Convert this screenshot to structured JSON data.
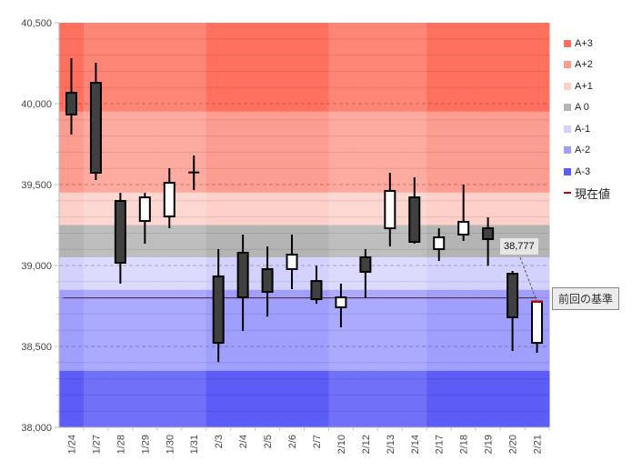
{
  "chart_data": {
    "type": "candlestick",
    "ylim": [
      38000,
      40500
    ],
    "yticks": [
      "38,000",
      "38,500",
      "39,000",
      "39,500",
      "40,000",
      "40,500"
    ],
    "ytick_values": [
      38000,
      38500,
      39000,
      39500,
      40000,
      40500
    ],
    "categories": [
      "1/24",
      "1/27",
      "1/28",
      "1/29",
      "1/30",
      "1/31",
      "2/3",
      "2/4",
      "2/5",
      "2/6",
      "2/7",
      "2/10",
      "2/12",
      "2/13",
      "2/14",
      "2/17",
      "2/18",
      "2/19",
      "2/20",
      "2/21"
    ],
    "ohlc": [
      [
        40067,
        40281,
        39809,
        39933
      ],
      [
        40129,
        40253,
        39528,
        39573
      ],
      [
        39399,
        39449,
        38888,
        39017
      ],
      [
        39275,
        39449,
        39135,
        39421
      ],
      [
        39303,
        39601,
        39230,
        39511
      ],
      [
        39573,
        39680,
        39466,
        39575
      ],
      [
        38933,
        39101,
        38404,
        38522
      ],
      [
        39079,
        39191,
        38596,
        38803
      ],
      [
        38978,
        39118,
        38685,
        38837
      ],
      [
        38978,
        39191,
        38854,
        39067
      ],
      [
        38904,
        38999,
        38764,
        38792
      ],
      [
        38742,
        38888,
        38618,
        38803
      ],
      [
        39051,
        39101,
        38798,
        38961
      ],
      [
        39230,
        39573,
        39118,
        39461
      ],
      [
        39421,
        39545,
        39135,
        39146
      ],
      [
        39101,
        39230,
        39028,
        39174
      ],
      [
        39191,
        39500,
        39152,
        39270
      ],
      [
        39230,
        39298,
        38999,
        39163
      ],
      [
        38949,
        38966,
        38472,
        38680
      ],
      [
        38522,
        38777,
        38461,
        38777
      ]
    ],
    "week_shading": [
      true,
      false,
      false,
      false,
      false,
      false,
      true,
      true,
      true,
      true,
      true,
      false,
      false,
      false,
      false,
      true,
      true,
      true,
      true,
      true
    ],
    "bands": [
      {
        "name": "A+3",
        "from": 39950,
        "to": 40500,
        "color": "#ff705f",
        "light": "#fe8676"
      },
      {
        "name": "A+2",
        "from": 39450,
        "to": 39950,
        "color": "#fd9c90",
        "light": "#fdaba0"
      },
      {
        "name": "A+1",
        "from": 39250,
        "to": 39450,
        "color": "#fdd0c9",
        "light": "#fdd8d2"
      },
      {
        "name": "A 0",
        "from": 39050,
        "to": 39250,
        "color": "#b4b4b4",
        "light": "#bebebe"
      },
      {
        "name": "A-1",
        "from": 38850,
        "to": 39050,
        "color": "#d3d2fe",
        "light": "#dcdbfe"
      },
      {
        "name": "A-2",
        "from": 38350,
        "to": 38850,
        "color": "#a09ffd",
        "light": "#abaafe"
      },
      {
        "name": "A-3",
        "from": 38000,
        "to": 38350,
        "color": "#5c5cf7",
        "light": "#7070f8"
      }
    ],
    "legend": [
      {
        "label": "A+3",
        "color": "#ff705f"
      },
      {
        "label": "A+2",
        "color": "#fd9c90"
      },
      {
        "label": "A+1",
        "color": "#fdd0c9"
      },
      {
        "label": "A 0",
        "color": "#b4b4b4"
      },
      {
        "label": "A-1",
        "color": "#d3d2fe"
      },
      {
        "label": "A-2",
        "color": "#a09ffd"
      },
      {
        "label": "A-3",
        "color": "#5c5cf7"
      }
    ],
    "current_legend": "現在値",
    "current_value": 38777,
    "current_value_label": "38,777",
    "reference_value": 38800,
    "reference_label": "前回の基準",
    "up_color": "#ffffff",
    "down_color": "#404040"
  }
}
